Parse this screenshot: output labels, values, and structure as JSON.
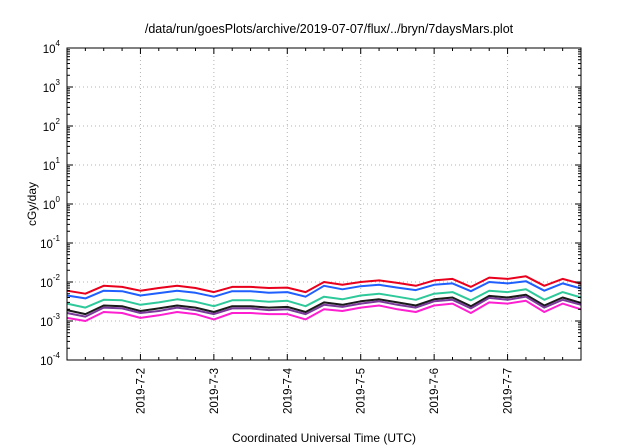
{
  "chart_data": {
    "type": "line",
    "title": "/data/run/goesPlots/archive/2019-07-07/flux/../bryn/7daysMars.plot",
    "xlabel": "Coordinated Universal Time (UTC)",
    "ylabel": "cGy/day",
    "yscale": "log",
    "ylim": [
      0.0001,
      10000
    ],
    "y_tick_labels": [
      {
        "base": "10",
        "exp": "-4"
      },
      {
        "base": "10",
        "exp": "-3"
      },
      {
        "base": "10",
        "exp": "-2"
      },
      {
        "base": "10",
        "exp": "-1"
      },
      {
        "base": "10",
        "exp": "0"
      },
      {
        "base": "10",
        "exp": "1"
      },
      {
        "base": "10",
        "exp": "2"
      },
      {
        "base": "10",
        "exp": "3"
      },
      {
        "base": "10",
        "exp": "4"
      }
    ],
    "x_tick_labels": [
      "2019-7-2",
      "2019-7-3",
      "2019-7-4",
      "2019-7-5",
      "2019-7-6",
      "2019-7-7"
    ],
    "xlim": [
      "2019-07-01T00:00",
      "2019-07-08T00:00"
    ],
    "grid": true,
    "legend": "none",
    "x": [
      "2019-07-01T00:00",
      "2019-07-01T06:00",
      "2019-07-01T12:00",
      "2019-07-01T18:00",
      "2019-07-02T00:00",
      "2019-07-02T06:00",
      "2019-07-02T12:00",
      "2019-07-02T18:00",
      "2019-07-03T00:00",
      "2019-07-03T06:00",
      "2019-07-03T12:00",
      "2019-07-03T18:00",
      "2019-07-04T00:00",
      "2019-07-04T06:00",
      "2019-07-04T12:00",
      "2019-07-04T18:00",
      "2019-07-05T00:00",
      "2019-07-05T06:00",
      "2019-07-05T12:00",
      "2019-07-05T18:00",
      "2019-07-06T00:00",
      "2019-07-06T06:00",
      "2019-07-06T12:00",
      "2019-07-06T18:00",
      "2019-07-07T00:00",
      "2019-07-07T06:00",
      "2019-07-07T12:00",
      "2019-07-07T18:00",
      "2019-07-08T00:00"
    ],
    "series": [
      {
        "color": "#e8001c",
        "values": [
          0.006,
          0.005,
          0.008,
          0.0075,
          0.006,
          0.007,
          0.008,
          0.007,
          0.0055,
          0.0075,
          0.0075,
          0.007,
          0.0072,
          0.0055,
          0.01,
          0.0085,
          0.01,
          0.011,
          0.0095,
          0.008,
          0.011,
          0.012,
          0.0075,
          0.013,
          0.012,
          0.014,
          0.008,
          0.012,
          0.009
        ]
      },
      {
        "color": "#1f5fff",
        "values": [
          0.0045,
          0.0038,
          0.006,
          0.0058,
          0.0045,
          0.0052,
          0.006,
          0.0053,
          0.0042,
          0.0058,
          0.0058,
          0.0053,
          0.0055,
          0.0042,
          0.008,
          0.0065,
          0.0078,
          0.0085,
          0.0072,
          0.0062,
          0.0085,
          0.0092,
          0.0058,
          0.01,
          0.0092,
          0.0105,
          0.006,
          0.0092,
          0.0068
        ]
      },
      {
        "color": "#2ec99a",
        "values": [
          0.0028,
          0.0022,
          0.0035,
          0.0034,
          0.0026,
          0.003,
          0.0036,
          0.0031,
          0.0024,
          0.0034,
          0.0034,
          0.0031,
          0.0033,
          0.0024,
          0.0042,
          0.0036,
          0.0045,
          0.005,
          0.0042,
          0.0035,
          0.005,
          0.0055,
          0.0034,
          0.006,
          0.0055,
          0.0065,
          0.0035,
          0.0055,
          0.004
        ]
      },
      {
        "color": "#1a1a1a",
        "values": [
          0.0019,
          0.0015,
          0.0025,
          0.0024,
          0.0018,
          0.0021,
          0.0025,
          0.0022,
          0.0017,
          0.0024,
          0.0024,
          0.0022,
          0.0023,
          0.0017,
          0.003,
          0.0026,
          0.0032,
          0.0036,
          0.003,
          0.0025,
          0.0036,
          0.004,
          0.0024,
          0.0044,
          0.004,
          0.0047,
          0.0025,
          0.004,
          0.0029
        ]
      },
      {
        "color": "#7a3a9a",
        "values": [
          0.0016,
          0.0013,
          0.0022,
          0.0021,
          0.0016,
          0.0018,
          0.0022,
          0.0019,
          0.0015,
          0.0021,
          0.0021,
          0.0019,
          0.002,
          0.0015,
          0.0026,
          0.0023,
          0.0028,
          0.0032,
          0.0026,
          0.0022,
          0.0032,
          0.0035,
          0.0021,
          0.0039,
          0.0035,
          0.0042,
          0.0022,
          0.0035,
          0.0026
        ]
      },
      {
        "color": "#ff1fd0",
        "values": [
          0.0012,
          0.001,
          0.0017,
          0.0016,
          0.0012,
          0.0014,
          0.0017,
          0.0015,
          0.0011,
          0.0016,
          0.0016,
          0.0015,
          0.0015,
          0.0011,
          0.002,
          0.0018,
          0.0022,
          0.0025,
          0.002,
          0.0017,
          0.0025,
          0.0028,
          0.0016,
          0.003,
          0.0028,
          0.0033,
          0.0017,
          0.0028,
          0.002
        ]
      }
    ]
  }
}
